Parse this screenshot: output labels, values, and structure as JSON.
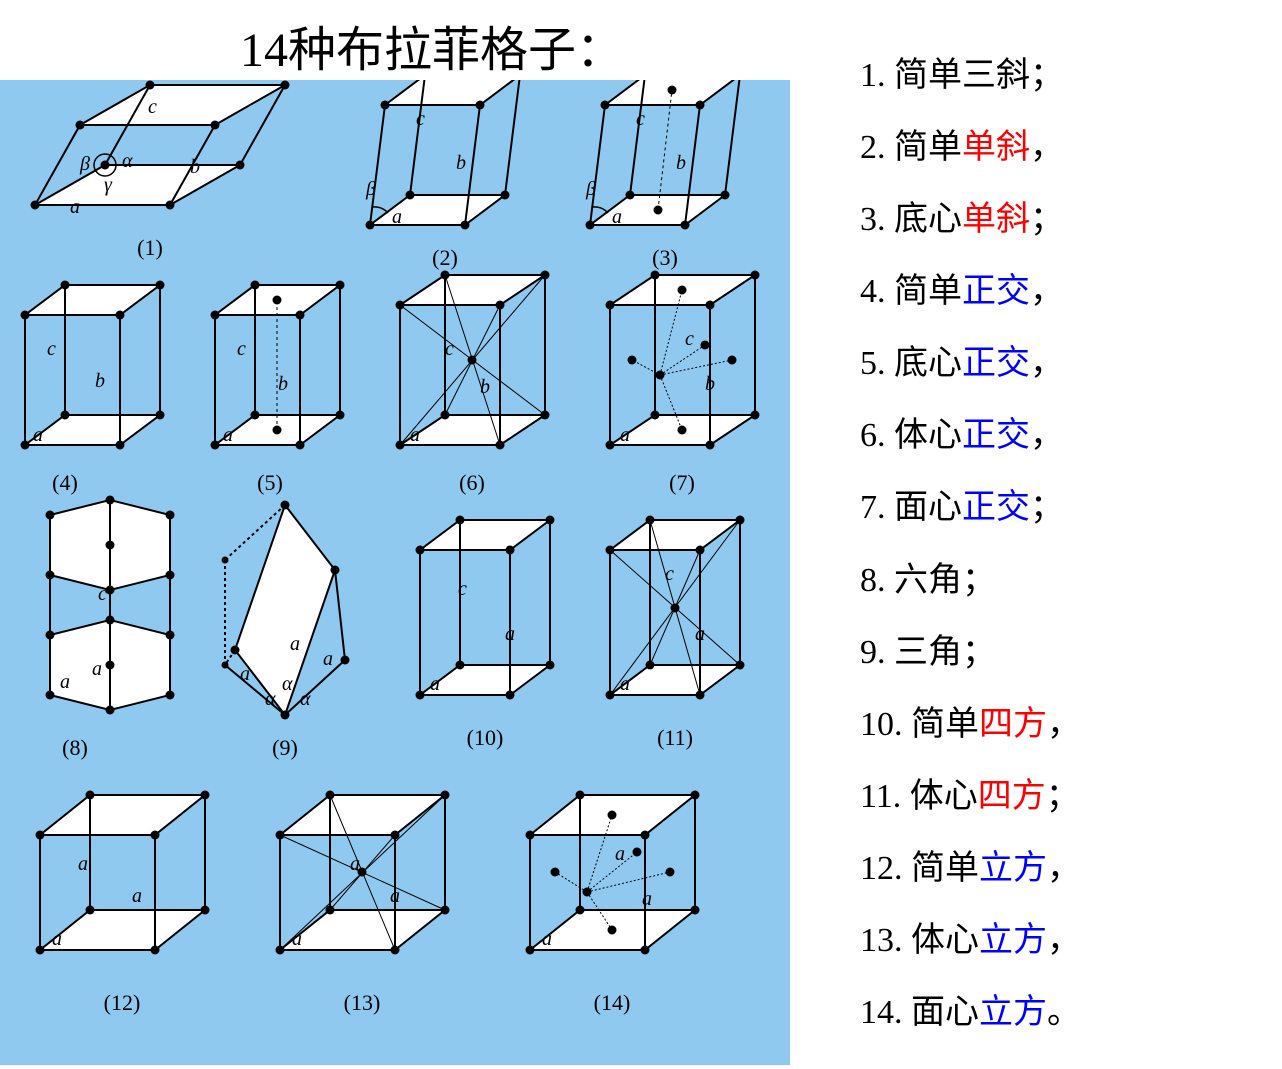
{
  "title": "14种布拉菲格子：",
  "panel_bg": "#8fc9ef",
  "stroke": "#000000",
  "stroke_width": 2,
  "dot_fill": "#000000",
  "dot_radius": 4.5,
  "labels": {
    "a": "a",
    "b": "b",
    "c": "c",
    "alpha": "α",
    "beta": "β",
    "gamma": "γ"
  },
  "cells": [
    {
      "id": "(1)"
    },
    {
      "id": "(2)"
    },
    {
      "id": "(3)"
    },
    {
      "id": "(4)"
    },
    {
      "id": "(5)"
    },
    {
      "id": "(6)"
    },
    {
      "id": "(7)"
    },
    {
      "id": "(8)"
    },
    {
      "id": "(9)"
    },
    {
      "id": "(10)"
    },
    {
      "id": "(11)"
    },
    {
      "id": "(12)"
    },
    {
      "id": "(13)"
    },
    {
      "id": "(14)"
    }
  ],
  "list": [
    {
      "n": "1.",
      "parts": [
        [
          "简单三斜；",
          ""
        ]
      ]
    },
    {
      "n": "2.",
      "parts": [
        [
          "简单",
          ""
        ],
        [
          "单斜",
          "red"
        ],
        [
          "，",
          ""
        ]
      ]
    },
    {
      "n": "3.",
      "parts": [
        [
          "底心",
          ""
        ],
        [
          "单斜",
          "red"
        ],
        [
          "；",
          ""
        ]
      ]
    },
    {
      "n": "4.",
      "parts": [
        [
          "简单",
          ""
        ],
        [
          "正交",
          "blue"
        ],
        [
          "，",
          ""
        ]
      ]
    },
    {
      "n": "5.",
      "parts": [
        [
          "底心",
          ""
        ],
        [
          "正交",
          "blue"
        ],
        [
          "，",
          ""
        ]
      ]
    },
    {
      "n": "6.",
      "parts": [
        [
          "体心",
          ""
        ],
        [
          "正交",
          "blue"
        ],
        [
          "，",
          ""
        ]
      ]
    },
    {
      "n": "7.",
      "parts": [
        [
          "面心",
          ""
        ],
        [
          "正交",
          "blue"
        ],
        [
          "；",
          ""
        ]
      ]
    },
    {
      "n": "8.",
      "parts": [
        [
          "六角；",
          ""
        ]
      ]
    },
    {
      "n": "9.",
      "parts": [
        [
          "三角；",
          ""
        ]
      ]
    },
    {
      "n": "10.",
      "parts": [
        [
          "简单",
          ""
        ],
        [
          "四方",
          "red"
        ],
        [
          "，",
          ""
        ]
      ]
    },
    {
      "n": "11.",
      "parts": [
        [
          "体心",
          ""
        ],
        [
          "四方",
          "red"
        ],
        [
          "；",
          ""
        ]
      ]
    },
    {
      "n": "12.",
      "parts": [
        [
          "简单",
          ""
        ],
        [
          "立方",
          "blue"
        ],
        [
          "，",
          ""
        ]
      ]
    },
    {
      "n": "13.",
      "parts": [
        [
          "体心",
          ""
        ],
        [
          "立方",
          "blue"
        ],
        [
          "，",
          ""
        ]
      ]
    },
    {
      "n": "14.",
      "parts": [
        [
          "面心",
          ""
        ],
        [
          "立方",
          "blue"
        ],
        [
          "。",
          ""
        ]
      ]
    }
  ]
}
